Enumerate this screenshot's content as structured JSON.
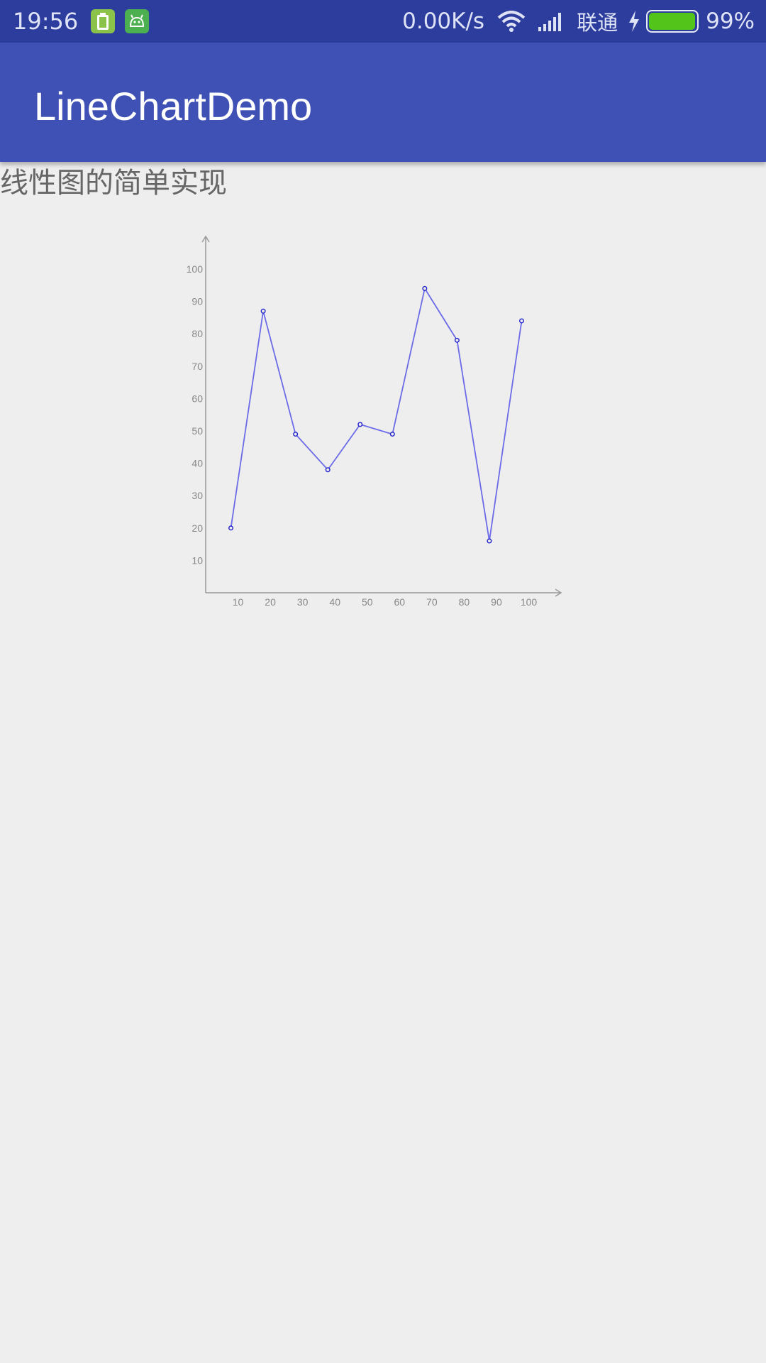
{
  "status_bar": {
    "time": "19:56",
    "net_speed": "0.00K/s",
    "carrier": "联通",
    "battery_percent": "99%",
    "battery_level": 0.99,
    "icons": [
      "battery-notification-icon",
      "android-icon",
      "wifi-icon",
      "signal-icon",
      "charging-icon"
    ],
    "colors": {
      "background": "#2d3d9e",
      "notif_icon": "#8bc34a",
      "battery": "#52c41a"
    }
  },
  "app_bar": {
    "title": "LineChartDemo",
    "color": "#3f51b5"
  },
  "page": {
    "heading": "线性图的简单实现"
  },
  "chart_data": {
    "type": "line",
    "x": [
      10,
      20,
      30,
      40,
      50,
      60,
      70,
      80,
      90,
      100
    ],
    "x_tick_labels": [
      "10",
      "20",
      "30",
      "40",
      "50",
      "60",
      "70",
      "80",
      "90",
      "100"
    ],
    "y_tick_labels": [
      "10",
      "20",
      "30",
      "40",
      "50",
      "60",
      "70",
      "80",
      "90",
      "100"
    ],
    "series": [
      {
        "values": [
          20,
          87,
          49,
          38,
          52,
          49,
          94,
          78,
          16,
          84
        ],
        "color": "#6b6be8"
      }
    ],
    "xlim": [
      0,
      110
    ],
    "ylim": [
      0,
      110
    ],
    "grid": false,
    "axis_color": "#999999"
  }
}
